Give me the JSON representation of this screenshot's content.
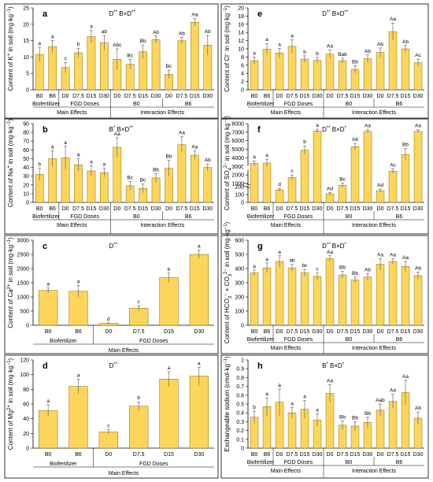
{
  "figure_id": "fig-soil-ions",
  "common": {
    "main_effects_label": "Main Effects",
    "interaction_effects_label": "Interaction Effects",
    "biofertilizer_label": "Biofertilizer",
    "fgd_doses_label": "FGD Doses",
    "b0_label": "B0",
    "b6_label": "B6",
    "bar_color": "#fdd55b",
    "bar_stroke": "#8a6d00"
  },
  "chart_data": [
    {
      "id": "a",
      "panel_letter": "a",
      "type": "bar",
      "layout": "full",
      "significance": "D** B×D**",
      "ylabel": "Content of K+ in soil (mg·kg-1)",
      "ylim": [
        0,
        25
      ],
      "yticks": [
        0,
        5,
        10,
        15,
        20,
        25
      ],
      "categories": [
        "B0",
        "B6",
        "D0",
        "D7.5",
        "D15",
        "D30",
        "D0",
        "D7.5",
        "D15",
        "D30",
        "D0",
        "D7.5",
        "D15",
        "D30"
      ],
      "values": [
        10.8,
        13.2,
        6.8,
        11.3,
        16.2,
        14.4,
        9.3,
        7.8,
        11.6,
        15.3,
        4.7,
        15.0,
        20.6,
        13.6
      ],
      "errors": [
        2.2,
        1.8,
        1.6,
        1.4,
        1.9,
        2.2,
        3.2,
        1.5,
        2.1,
        1.1,
        1.3,
        1.0,
        1.1,
        3.0
      ],
      "labels": [
        "a",
        "a",
        "c",
        "b",
        "a",
        "ab",
        "Abc",
        "Bc",
        "Bb",
        "Ab",
        "Bc",
        "Ab",
        "Aa",
        "Ab"
      ]
    },
    {
      "id": "e",
      "panel_letter": "e",
      "type": "bar",
      "layout": "full",
      "significance": "D** B×D**",
      "ylabel": "Content of Cl- in soil (mg·kg-1)",
      "ylim": [
        0,
        20
      ],
      "yticks": [
        0,
        2,
        4,
        6,
        8,
        10,
        12,
        14,
        16,
        18,
        20
      ],
      "categories": [
        "B0",
        "B6",
        "D0",
        "D7.5",
        "D15",
        "D30",
        "D0",
        "D7.5",
        "D15",
        "D30",
        "D0",
        "D7.5",
        "D15",
        "D30"
      ],
      "values": [
        7.1,
        9.9,
        9.0,
        10.6,
        7.5,
        7.2,
        8.7,
        7.1,
        5.0,
        7.6,
        9.1,
        14.2,
        10.0,
        6.6
      ],
      "errors": [
        0.9,
        1.4,
        1.1,
        1.6,
        0.8,
        0.7,
        1.0,
        0.6,
        0.9,
        0.9,
        1.1,
        2.1,
        0.8,
        0.9
      ],
      "labels": [
        "a",
        "a",
        "a",
        "a",
        "b",
        "b",
        "Aa",
        "Bab",
        "Bb",
        "Ab",
        "Ab",
        "Aa",
        "Ab",
        "Ac"
      ]
    },
    {
      "id": "b",
      "panel_letter": "b",
      "type": "bar",
      "layout": "full",
      "significance": "B* B×D**",
      "ylabel": "Content of Na+ in soil (mg·kg-1)",
      "ylim": [
        0,
        90
      ],
      "yticks": [
        0,
        10,
        20,
        30,
        40,
        50,
        60,
        70,
        80,
        90
      ],
      "categories": [
        "B0",
        "B6",
        "D0",
        "D7.5",
        "D15",
        "D30",
        "D0",
        "D7.5",
        "D15",
        "D30",
        "D0",
        "D7.5",
        "D15",
        "D30"
      ],
      "values": [
        32,
        50,
        51,
        43,
        36,
        34,
        63,
        19,
        16,
        28,
        39,
        66,
        54,
        40
      ],
      "errors": [
        7,
        9,
        13,
        7,
        6,
        5,
        11,
        5,
        5,
        5,
        9,
        9,
        5,
        4
      ],
      "labels": [
        "b",
        "a",
        "a",
        "a",
        "a",
        "a",
        "Aa",
        "Bc",
        "Bc",
        "Bb",
        "Bb",
        "Aa",
        "Aa",
        "Ab"
      ]
    },
    {
      "id": "f",
      "panel_letter": "f",
      "type": "bar",
      "layout": "full",
      "broken_axis": true,
      "significance": "D** B×D*",
      "ylabel": "Content of SO42- in soil (mg·kg-1)",
      "ylim": [
        0,
        8000
      ],
      "yticks": [
        0,
        100,
        200,
        1000,
        2000,
        3000,
        4000,
        5000,
        6000,
        7000,
        8000
      ],
      "categories": [
        "B0",
        "B6",
        "D0",
        "D7.5",
        "D15",
        "D30",
        "D0",
        "D7.5",
        "D15",
        "D30",
        "D0",
        "D7.5",
        "D15",
        "D30"
      ],
      "values": [
        3350,
        3400,
        160,
        1700,
        4900,
        7150,
        110,
        800,
        5300,
        7100,
        150,
        2450,
        4400,
        7100
      ],
      "errors": [
        300,
        450,
        20,
        300,
        500,
        200,
        15,
        250,
        400,
        200,
        20,
        250,
        700,
        200
      ],
      "labels": [
        "a",
        "a",
        "d",
        "c",
        "b",
        "a",
        "Ad",
        "Bc",
        "Ab",
        "Aa",
        "Ad",
        "Ac",
        "Bb",
        "Aa"
      ]
    },
    {
      "id": "c",
      "panel_letter": "c",
      "type": "bar",
      "layout": "main",
      "significance": "D**",
      "ylabel": "Content of Ca2+ in soil (mg·kg-1)",
      "ylim": [
        0,
        3000
      ],
      "yticks": [
        0,
        500,
        1000,
        1500,
        2000,
        2500,
        3000
      ],
      "categories": [
        "B0",
        "B6",
        "D0",
        "D7.5",
        "D15",
        "D30"
      ],
      "values": [
        1230,
        1200,
        70,
        600,
        1680,
        2500
      ],
      "errors": [
        90,
        200,
        15,
        90,
        160,
        150
      ],
      "labels": [
        "a",
        "a",
        "d",
        "c",
        "b",
        "a"
      ]
    },
    {
      "id": "g",
      "panel_letter": "g",
      "type": "bar",
      "layout": "full",
      "significance": "D** B×D*",
      "ylabel": "Content of HCO3- + CO32- in soil (mg·kg-1)",
      "ylim": [
        0,
        600
      ],
      "yticks": [
        0,
        100,
        200,
        300,
        400,
        500,
        600
      ],
      "categories": [
        "B0",
        "B6",
        "D0",
        "D7.5",
        "D15",
        "D30",
        "D0",
        "D7.5",
        "D15",
        "D30",
        "D0",
        "D7.5",
        "D15",
        "D30"
      ],
      "values": [
        370,
        405,
        450,
        405,
        370,
        345,
        470,
        355,
        320,
        340,
        430,
        450,
        415,
        350
      ],
      "errors": [
        20,
        35,
        40,
        25,
        25,
        25,
        20,
        25,
        20,
        25,
        40,
        20,
        35,
        25
      ],
      "labels": [
        "a",
        "a",
        "a",
        "ab",
        "bc",
        "c",
        "Aa",
        "Bb",
        "Bb",
        "Ab",
        "Aa",
        "Aa",
        "Aa",
        "Ab"
      ]
    },
    {
      "id": "d",
      "panel_letter": "d",
      "type": "bar",
      "layout": "main",
      "significance": "D**",
      "ylabel": "Content of Mg2+ in soil (mg·kg-1)",
      "ylim": [
        0,
        120
      ],
      "yticks": [
        0,
        20,
        40,
        60,
        80,
        100,
        120
      ],
      "categories": [
        "B0",
        "B6",
        "D0",
        "D7.5",
        "D15",
        "D30"
      ],
      "values": [
        51,
        84,
        22,
        57,
        94,
        98
      ],
      "errors": [
        8,
        10,
        3,
        6,
        10,
        12
      ],
      "labels": [
        "a",
        "a",
        "c",
        "b",
        "a",
        "a"
      ]
    },
    {
      "id": "h",
      "panel_letter": "h",
      "type": "bar",
      "layout": "full",
      "significance": "B* B×D*",
      "ylabel": "Exchangeable sodium (cmol·kg-1)",
      "ylim": [
        0,
        1.0
      ],
      "yticks": [
        0,
        0.1,
        0.2,
        0.3,
        0.4,
        0.5,
        0.6,
        0.7,
        0.8,
        0.9,
        1.0
      ],
      "categories": [
        "B0",
        "B6",
        "D0",
        "D7.5",
        "D15",
        "D30",
        "D0",
        "D7.5",
        "D15",
        "D30",
        "D0",
        "D7.5",
        "D15",
        "D30"
      ],
      "values": [
        0.35,
        0.47,
        0.52,
        0.4,
        0.44,
        0.32,
        0.62,
        0.26,
        0.25,
        0.29,
        0.43,
        0.53,
        0.63,
        0.34
      ],
      "errors": [
        0.07,
        0.1,
        0.15,
        0.06,
        0.1,
        0.07,
        0.1,
        0.05,
        0.05,
        0.06,
        0.07,
        0.08,
        0.14,
        0.07
      ],
      "labels": [
        "b",
        "a",
        "a",
        "a",
        "a",
        "a",
        "Aa",
        "Bb",
        "Bb",
        "Bb",
        "Aab",
        "Aa",
        "Aa",
        "Ab"
      ]
    }
  ]
}
